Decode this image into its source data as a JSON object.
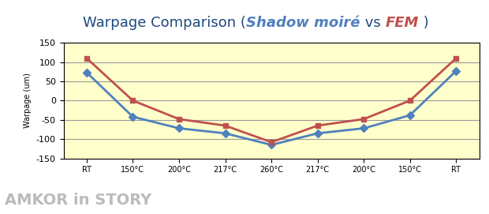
{
  "chart_data": {
    "type": "line",
    "title": "Warpage Comparison (Shadow moiré vs FEM )",
    "y_label": "Warpage (um)",
    "categories": [
      "RT",
      "150°C",
      "200°C",
      "217°C",
      "260°C",
      "217°C",
      "200°C",
      "150°C",
      "RT"
    ],
    "series": [
      {
        "name": "Shadow moiré",
        "color": "#4f81bd",
        "marker": "diamond",
        "line_style": "solid",
        "values": [
          73,
          -42,
          -72,
          -85,
          -115,
          -85,
          -72,
          -38,
          77
        ]
      },
      {
        "name": "FEM",
        "color": "#c0504d",
        "marker": "square",
        "line_style": "solid",
        "values": [
          110,
          0,
          -48,
          -65,
          -108,
          -65,
          -48,
          0,
          110
        ]
      }
    ],
    "ylim": [
      -150,
      150
    ],
    "yticks": [
      -150,
      -100,
      -50,
      0,
      50,
      100,
      150
    ],
    "grid": true,
    "annotations": [
      "AMKOR in STORY"
    ]
  }
}
